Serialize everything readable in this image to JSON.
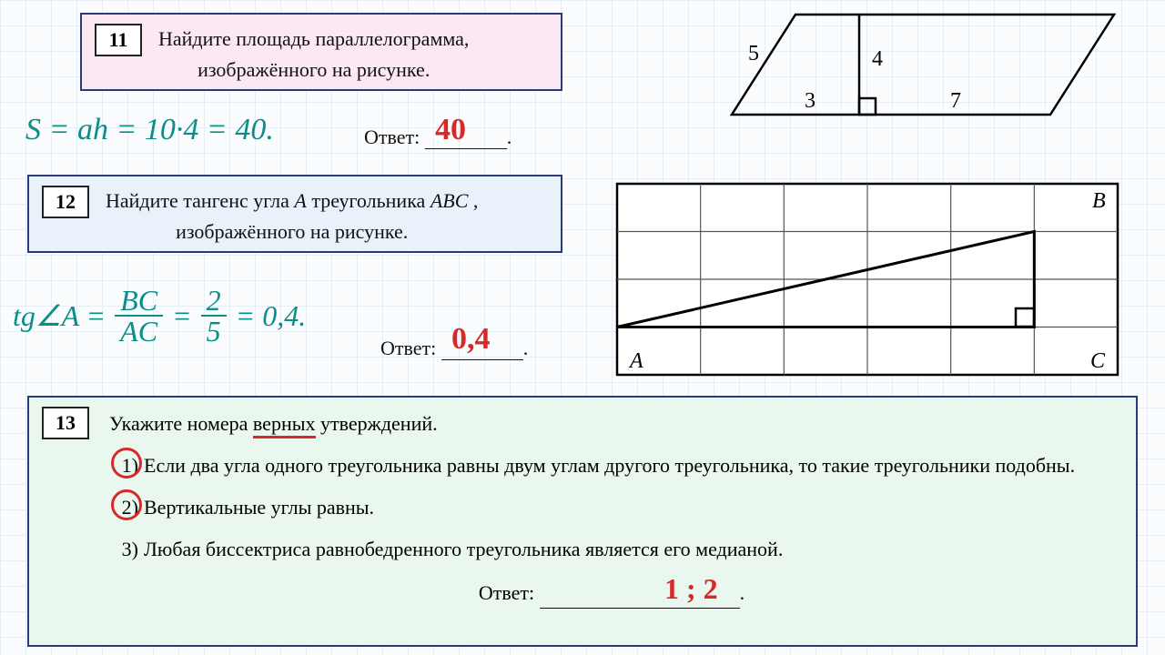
{
  "q11": {
    "num": "11",
    "text_l1": "Найдите площадь параллелограмма,",
    "text_l2": "изображённого на рисунке.",
    "work": "S = ah = 10·4 = 40.",
    "answer_label": "Ответ:",
    "answer_value": "40",
    "diagram": {
      "type": "parallelogram",
      "labels": {
        "side_left": "5",
        "height": "4",
        "base_left": "3",
        "base_right": "7"
      },
      "stroke": "#000000",
      "stroke_width": 2.5,
      "fontsize": 24
    }
  },
  "q12": {
    "num": "12",
    "text_l1": "Найдите тангенс угла A треугольника ABC ,",
    "text_l2": "изображённого на рисунке.",
    "work_prefix": "tg∠A =",
    "work_frac1_top": "BC",
    "work_frac1_bot": "AC",
    "work_frac2_top": "2",
    "work_frac2_bot": "5",
    "work_suffix": "= 0,4.",
    "answer_label": "Ответ:",
    "answer_value": "0,4",
    "diagram": {
      "type": "grid-triangle",
      "grid_cols": 6,
      "grid_rows": 4,
      "A": [
        0,
        3
      ],
      "B": [
        5,
        1
      ],
      "C": [
        5,
        3
      ],
      "labels": {
        "A": "A",
        "B": "B",
        "C": "C"
      },
      "right_angle_at": "C",
      "stroke": "#000000",
      "grid_color": "#555555",
      "fontsize": 22
    }
  },
  "q13": {
    "num": "13",
    "intro_pre": "Укажите номера ",
    "intro_underlined": "верных",
    "intro_post": " утверждений.",
    "statements": [
      {
        "n": "1)",
        "text": "Если два угла одного треугольника равны двум углам другого треугольника, то такие треугольники подобны.",
        "circled": true
      },
      {
        "n": "2)",
        "text": "Вертикальные углы равны.",
        "circled": true
      },
      {
        "n": "3)",
        "text": "Любая биссектриса равнобедренного треугольника является его медианой.",
        "circled": false
      }
    ],
    "answer_label": "Ответ:",
    "answer_value": "1 ; 2"
  },
  "colors": {
    "box_border": "#2a3b7a",
    "pink_bg": "#fce8f3",
    "blue_bg": "#e9f2fb",
    "green_bg": "#eaf7ee",
    "teal_ink": "#0a8f88",
    "red_ink": "#d62a2a",
    "text": "#111111"
  }
}
